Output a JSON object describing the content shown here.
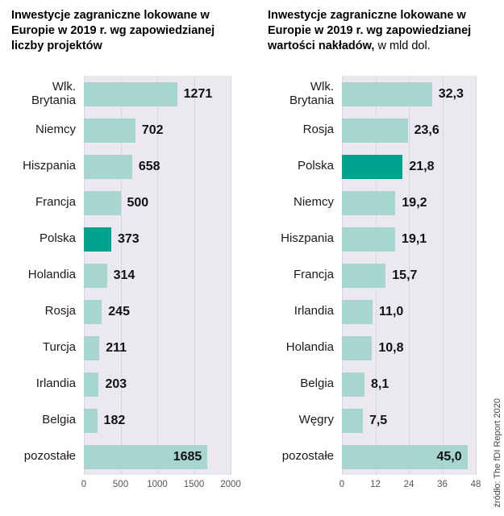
{
  "source_note": "źródło: The fDI Report 2020",
  "colors": {
    "bar": "#a6d6cf",
    "highlight_bar": "#00a38e",
    "plot_background": "#ebe8f0",
    "gridline": "#d9d5e1",
    "value_text": "#111111"
  },
  "chart_data": [
    {
      "type": "bar",
      "orientation": "horizontal",
      "title": "Inwestycje zagraniczne lokowane w Europie w 2019 r. wg zapowiedzianej liczby projektów",
      "title_suffix": "",
      "categories": [
        "Wlk. Brytania",
        "Niemcy",
        "Hiszpania",
        "Francja",
        "Polska",
        "Holandia",
        "Rosja",
        "Turcja",
        "Irlandia",
        "Belgia",
        "pozostałe"
      ],
      "values": [
        1271,
        702,
        658,
        500,
        373,
        314,
        245,
        211,
        203,
        182,
        1685
      ],
      "value_labels": [
        "1271",
        "702",
        "658",
        "500",
        "373",
        "314",
        "245",
        "211",
        "203",
        "182",
        "1685"
      ],
      "highlight_category": "Polska",
      "xlim": [
        0,
        2000
      ],
      "ticks": [
        0,
        500,
        1000,
        1500,
        2000
      ],
      "tick_labels": [
        "0",
        "500",
        "1000",
        "1500",
        "2000"
      ],
      "grid": true,
      "legend": false
    },
    {
      "type": "bar",
      "orientation": "horizontal",
      "title": "Inwestycje zagraniczne lokowane w Europie w 2019 r. wg zapowiedzianej wartości nakładów,",
      "title_suffix": " w mld dol.",
      "categories": [
        "Wlk. Brytania",
        "Rosja",
        "Polska",
        "Niemcy",
        "Hiszpania",
        "Francja",
        "Irlandia",
        "Holandia",
        "Belgia",
        "Węgry",
        "pozostałe"
      ],
      "values": [
        32.3,
        23.6,
        21.8,
        19.2,
        19.1,
        15.7,
        11.0,
        10.8,
        8.1,
        7.5,
        45.0
      ],
      "value_labels": [
        "32,3",
        "23,6",
        "21,8",
        "19,2",
        "19,1",
        "15,7",
        "11,0",
        "10,8",
        "8,1",
        "7,5",
        "45,0"
      ],
      "highlight_category": "Polska",
      "xlim": [
        0,
        48
      ],
      "ticks": [
        0,
        12,
        24,
        36,
        48
      ],
      "tick_labels": [
        "0",
        "12",
        "24",
        "36",
        "48"
      ],
      "grid": true,
      "legend": false
    }
  ]
}
